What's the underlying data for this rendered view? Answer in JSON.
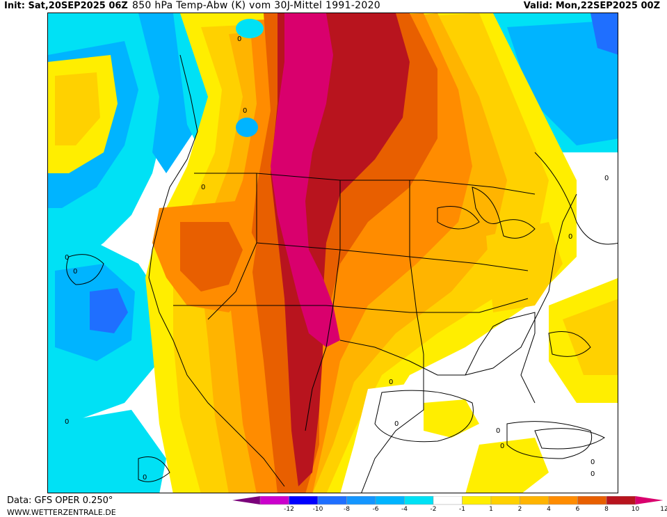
{
  "header": {
    "init": "Init: Sat,20SEP2025 06Z",
    "title": "850 hPa Temp-Abw (K) vom 30J-Mittel 1991-2020",
    "valid": "Valid: Mon,22SEP2025 00Z"
  },
  "footer": {
    "source": "Data: GFS OPER 0.250°",
    "website": "WWW.WETTERZENTRALE.DE"
  },
  "legend": {
    "ticks": [
      "-12",
      "-10",
      "-8",
      "-6",
      "-4",
      "-2",
      "-1",
      "1",
      "2",
      "4",
      "6",
      "8",
      "10",
      "12"
    ],
    "colors": [
      "#cc00cc",
      "#0000ff",
      "#1f6fff",
      "#1496ff",
      "#00b4ff",
      "#00e1f5",
      "#ffffff",
      "#ffee00",
      "#ffd100",
      "#ffb400",
      "#ff8c00",
      "#e85f00",
      "#b8141e"
    ],
    "low_color": "#7a007a",
    "high_color": "#d9006d"
  },
  "map": {
    "contour_label": "0",
    "colors": {
      "deep_cold": "#1f6fff",
      "cold": "#00b4ff",
      "cool": "#00e1f5",
      "neutral": "#ffffff",
      "mild": "#ffee00",
      "warm": "#ffd100",
      "warmer": "#ffb400",
      "hot": "#ff8c00",
      "very_hot": "#e85f00",
      "extreme": "#b8141e",
      "max": "#d9006d"
    }
  }
}
